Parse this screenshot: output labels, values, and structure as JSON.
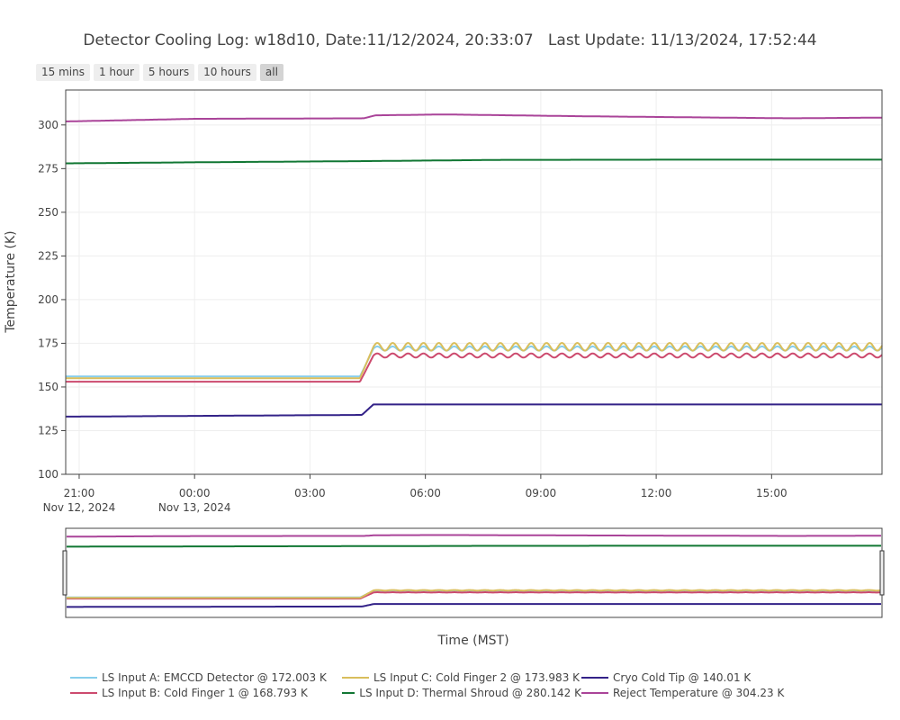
{
  "title": "Detector Cooling Log: w18d10, Date:11/12/2024, 20:33:07   Last Update: 11/13/2024, 17:52:44",
  "range_buttons": [
    {
      "label": "15 mins",
      "active": false
    },
    {
      "label": "1 hour",
      "active": false
    },
    {
      "label": "5 hours",
      "active": false
    },
    {
      "label": "10 hours",
      "active": false
    },
    {
      "label": "all",
      "active": true
    }
  ],
  "chart_data": {
    "type": "line",
    "ylabel": "Temperature (K)",
    "xlabel": "Time (MST)",
    "ylim": [
      100,
      320
    ],
    "x_range_hours": [
      -3.35,
      17.87
    ],
    "y_ticks": [
      100,
      125,
      150,
      175,
      200,
      225,
      250,
      275,
      300
    ],
    "x_ticks": [
      {
        "hour": -3,
        "line1": "21:00",
        "line2": "Nov 12, 2024"
      },
      {
        "hour": 0,
        "line1": "00:00",
        "line2": "Nov 13, 2024"
      },
      {
        "hour": 3,
        "line1": "03:00",
        "line2": ""
      },
      {
        "hour": 6,
        "line1": "06:00",
        "line2": ""
      },
      {
        "hour": 9,
        "line1": "09:00",
        "line2": ""
      },
      {
        "hour": 12,
        "line1": "12:00",
        "line2": ""
      },
      {
        "hour": 15,
        "line1": "15:00",
        "line2": ""
      }
    ],
    "grid": true,
    "legend_position": "bottom",
    "series": [
      {
        "name": "LS Input A: EMCCD Detector @ 172.003 K",
        "color": "#87ceeb",
        "oscillation": 1.2,
        "x": [
          -3.35,
          4.3,
          4.65,
          17.87
        ],
        "y": [
          156,
          156,
          172,
          172
        ]
      },
      {
        "name": "LS Input B: Cold Finger 1 @ 168.793 K",
        "color": "#cc4a6e",
        "oscillation": 1.2,
        "x": [
          -3.35,
          4.3,
          4.65,
          17.87
        ],
        "y": [
          153,
          153,
          168,
          168
        ]
      },
      {
        "name": "LS Input C: Cold Finger 2 @ 173.983 K",
        "color": "#d9be5c",
        "oscillation": 2.2,
        "x": [
          -3.35,
          4.3,
          4.65,
          17.87
        ],
        "y": [
          155,
          155,
          173,
          173
        ]
      },
      {
        "name": "LS Input D: Thermal Shroud @ 280.142 K",
        "color": "#117733",
        "oscillation": 0,
        "x": [
          -3.35,
          0,
          4.5,
          8,
          12,
          17.87
        ],
        "y": [
          278,
          278.6,
          279.3,
          280,
          280.1,
          280.1
        ]
      },
      {
        "name": "Cryo Cold Tip @ 140.01 K",
        "color": "#332288",
        "oscillation": 0,
        "x": [
          -3.35,
          4.35,
          4.65,
          17.87
        ],
        "y": [
          133,
          134,
          140,
          140
        ]
      },
      {
        "name": "Reject Temperature @ 304.23 K",
        "color": "#aa4499",
        "oscillation": 0,
        "x": [
          -3.35,
          0,
          4.4,
          4.7,
          6.5,
          10,
          15.5,
          17.87
        ],
        "y": [
          302,
          303.5,
          303.8,
          305.5,
          306,
          305,
          303.8,
          304.2
        ]
      }
    ]
  }
}
